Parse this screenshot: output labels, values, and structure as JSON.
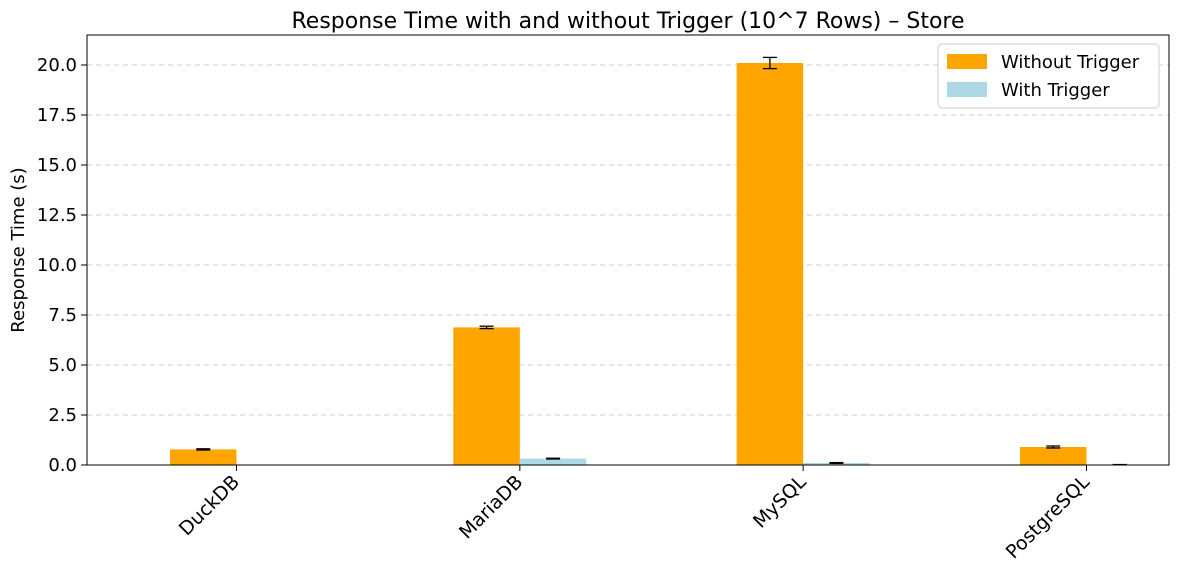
{
  "chart_data": {
    "type": "bar",
    "title": "Response Time with and without Trigger (10^7 Rows) – Store",
    "xlabel": "",
    "ylabel": "Response Time (s)",
    "ylim": [
      0,
      21.5
    ],
    "yticks": [
      0.0,
      2.5,
      5.0,
      7.5,
      10.0,
      12.5,
      15.0,
      17.5,
      20.0
    ],
    "ytick_labels": [
      "0.0",
      "2.5",
      "5.0",
      "7.5",
      "10.0",
      "12.5",
      "15.0",
      "17.5",
      "20.0"
    ],
    "grid": "horizontal dashed",
    "legend_position": "top-right",
    "categories": [
      "DuckDB",
      "MariaDB",
      "MySQL",
      "PostgreSQL"
    ],
    "series": [
      {
        "name": "Without Trigger",
        "color": "#FFA500",
        "values": [
          0.78,
          6.88,
          20.1,
          0.9
        ],
        "errors": [
          0.03,
          0.06,
          0.28,
          0.05
        ]
      },
      {
        "name": "With Trigger",
        "color": "#ADD8E6",
        "values": [
          0.0,
          0.32,
          0.1,
          0.02
        ],
        "errors": [
          0.0,
          0.02,
          0.02,
          0.0
        ]
      }
    ]
  }
}
